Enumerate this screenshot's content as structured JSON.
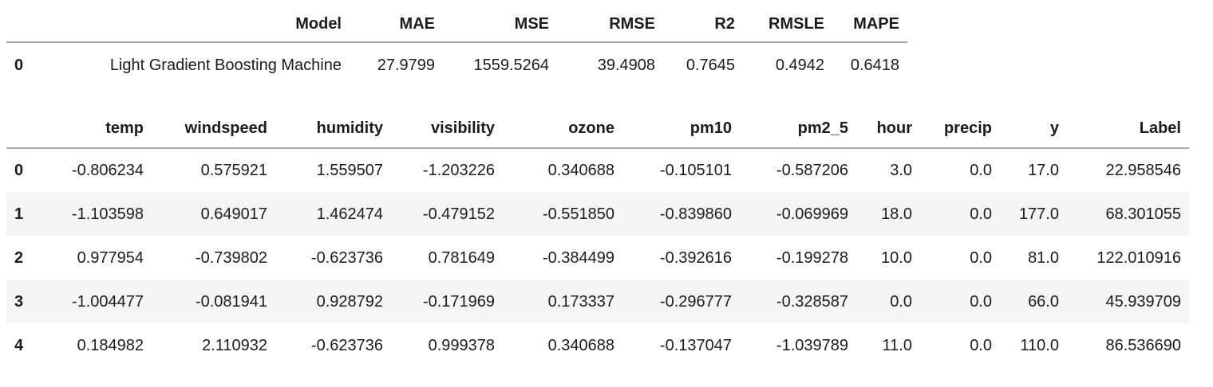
{
  "colors": {
    "text": "#1c1c1c",
    "header_rule": "#a6a6a6",
    "row_stripe": "#f5f5f5",
    "background": "#ffffff"
  },
  "metrics_table": {
    "columns": [
      "Model",
      "MAE",
      "MSE",
      "RMSE",
      "R2",
      "RMSLE",
      "MAPE"
    ],
    "rows": [
      {
        "index": "0",
        "cells": [
          "Light Gradient Boosting Machine",
          "27.9799",
          "1559.5264",
          "39.4908",
          "0.7645",
          "0.4942",
          "0.6418"
        ]
      }
    ]
  },
  "data_table": {
    "columns": [
      "temp",
      "windspeed",
      "humidity",
      "visibility",
      "ozone",
      "pm10",
      "pm2_5",
      "hour",
      "precip",
      "y",
      "Label"
    ],
    "rows": [
      {
        "index": "0",
        "cells": [
          "-0.806234",
          "0.575921",
          "1.559507",
          "-1.203226",
          "0.340688",
          "-0.105101",
          "-0.587206",
          "3.0",
          "0.0",
          "17.0",
          "22.958546"
        ]
      },
      {
        "index": "1",
        "cells": [
          "-1.103598",
          "0.649017",
          "1.462474",
          "-0.479152",
          "-0.551850",
          "-0.839860",
          "-0.069969",
          "18.0",
          "0.0",
          "177.0",
          "68.301055"
        ]
      },
      {
        "index": "2",
        "cells": [
          "0.977954",
          "-0.739802",
          "-0.623736",
          "0.781649",
          "-0.384499",
          "-0.392616",
          "-0.199278",
          "10.0",
          "0.0",
          "81.0",
          "122.010916"
        ]
      },
      {
        "index": "3",
        "cells": [
          "-1.004477",
          "-0.081941",
          "0.928792",
          "-0.171969",
          "0.173337",
          "-0.296777",
          "-0.328587",
          "0.0",
          "0.0",
          "66.0",
          "45.939709"
        ]
      },
      {
        "index": "4",
        "cells": [
          "0.184982",
          "2.110932",
          "-0.623736",
          "0.999378",
          "0.340688",
          "-0.137047",
          "-1.039789",
          "11.0",
          "0.0",
          "110.0",
          "86.536690"
        ]
      }
    ]
  }
}
